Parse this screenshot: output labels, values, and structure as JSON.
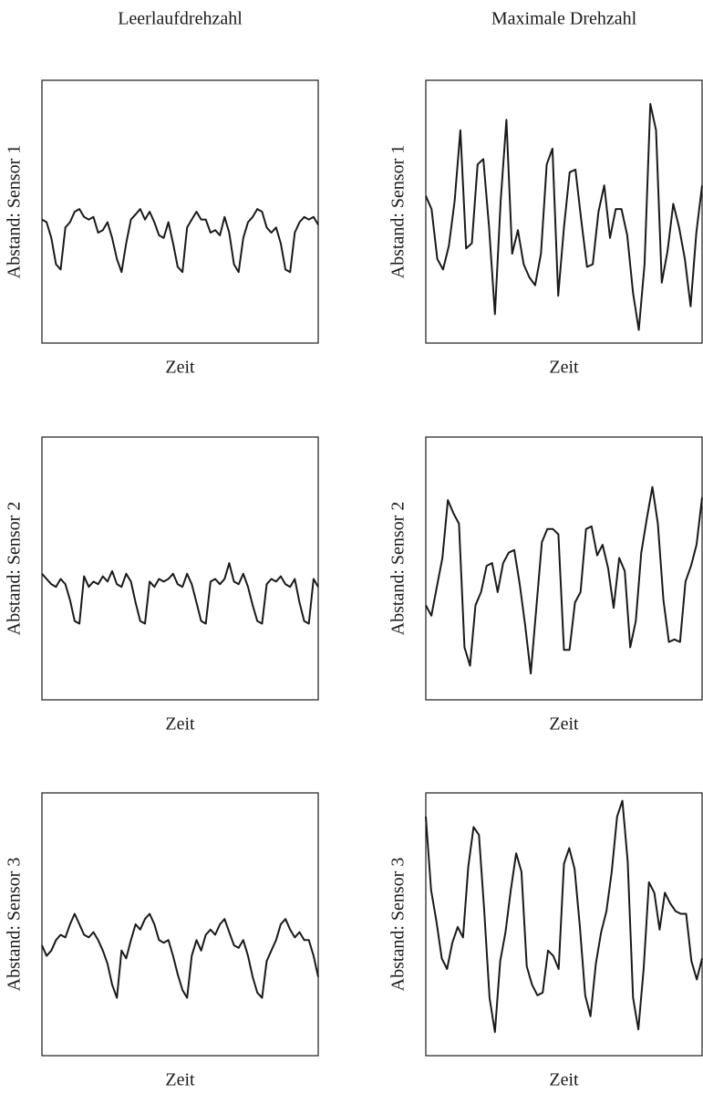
{
  "chart_data": [
    {
      "type": "line",
      "title": "Leerlaufdrehzahl",
      "y_label": "Abstand: Sensor 1",
      "x_label": "Zeit",
      "color": "#1a1a1a",
      "ylim": [
        0,
        100
      ],
      "values": [
        47,
        46,
        40,
        30,
        28,
        44,
        46,
        50,
        51,
        48,
        47,
        48,
        42,
        43,
        46,
        40,
        32,
        27,
        38,
        47,
        49,
        51,
        47,
        50,
        46,
        41,
        40,
        46,
        38,
        29,
        27,
        44,
        47,
        50,
        47,
        47,
        42,
        43,
        41,
        48,
        42,
        30,
        27,
        40,
        46,
        48,
        51,
        50,
        44,
        42,
        44,
        38,
        28,
        27,
        42,
        46,
        48,
        47,
        48,
        45
      ]
    },
    {
      "type": "line",
      "title": "Maximale Drehzahl",
      "y_label": "Abstand: Sensor 1",
      "x_label": "Zeit",
      "color": "#1a1a1a",
      "ylim": [
        0,
        100
      ],
      "values": [
        56,
        51,
        32,
        28,
        37,
        54,
        81,
        36,
        38,
        68,
        70,
        44,
        11,
        54,
        85,
        34,
        43,
        30,
        25,
        22,
        34,
        68,
        74,
        18,
        44,
        65,
        66,
        47,
        29,
        30,
        50,
        60,
        40,
        51,
        51,
        41,
        19,
        5,
        30,
        91,
        81,
        23,
        35,
        53,
        44,
        32,
        14,
        42,
        60
      ]
    },
    {
      "type": "line",
      "y_label": "Abstand: Sensor 2",
      "x_label": "Zeit",
      "color": "#1a1a1a",
      "ylim": [
        0,
        100
      ],
      "values": [
        48,
        46,
        44,
        43,
        46,
        44,
        38,
        30,
        29,
        47,
        43,
        45,
        44,
        47,
        45,
        49,
        44,
        43,
        48,
        45,
        37,
        30,
        29,
        45,
        43,
        46,
        45,
        46,
        48,
        44,
        43,
        48,
        44,
        37,
        30,
        29,
        45,
        46,
        44,
        46,
        52,
        45,
        44,
        48,
        43,
        36,
        30,
        29,
        44,
        46,
        45,
        47,
        44,
        43,
        46,
        37,
        30,
        29,
        46,
        43
      ]
    },
    {
      "type": "line",
      "y_label": "Abstand: Sensor 2",
      "x_label": "Zeit",
      "color": "#1a1a1a",
      "ylim": [
        0,
        100
      ],
      "values": [
        36,
        32,
        43,
        54,
        76,
        71,
        67,
        20,
        13,
        36,
        41,
        51,
        52,
        41,
        52,
        56,
        57,
        44,
        28,
        10,
        35,
        60,
        65,
        65,
        63,
        19,
        19,
        37,
        41,
        65,
        66,
        55,
        59,
        50,
        35,
        54,
        49,
        20,
        30,
        56,
        69,
        81,
        67,
        38,
        22,
        23,
        22,
        45,
        51,
        59,
        77
      ]
    },
    {
      "type": "line",
      "y_label": "Abstand: Sensor 3",
      "x_label": "Zeit",
      "color": "#1a1a1a",
      "ylim": [
        0,
        100
      ],
      "values": [
        42,
        38,
        40,
        44,
        46,
        45,
        50,
        54,
        50,
        46,
        45,
        47,
        44,
        40,
        35,
        27,
        22,
        40,
        37,
        44,
        50,
        48,
        52,
        54,
        50,
        44,
        43,
        44,
        38,
        31,
        25,
        22,
        38,
        44,
        40,
        46,
        48,
        46,
        50,
        52,
        47,
        42,
        41,
        44,
        38,
        30,
        24,
        22,
        36,
        40,
        44,
        50,
        52,
        48,
        45,
        47,
        44,
        44,
        38,
        30
      ]
    },
    {
      "type": "line",
      "y_label": "Abstand: Sensor 3",
      "x_label": "Zeit",
      "color": "#1a1a1a",
      "ylim": [
        0,
        100
      ],
      "values": [
        91,
        63,
        51,
        37,
        33,
        43,
        49,
        45,
        72,
        87,
        84,
        55,
        22,
        9,
        36,
        47,
        63,
        77,
        70,
        34,
        27,
        23,
        24,
        40,
        38,
        33,
        73,
        79,
        71,
        49,
        23,
        15,
        35,
        47,
        55,
        70,
        91,
        97,
        74,
        22,
        10,
        33,
        66,
        62,
        48,
        62,
        58,
        55,
        54,
        54,
        36,
        29,
        37
      ]
    }
  ]
}
